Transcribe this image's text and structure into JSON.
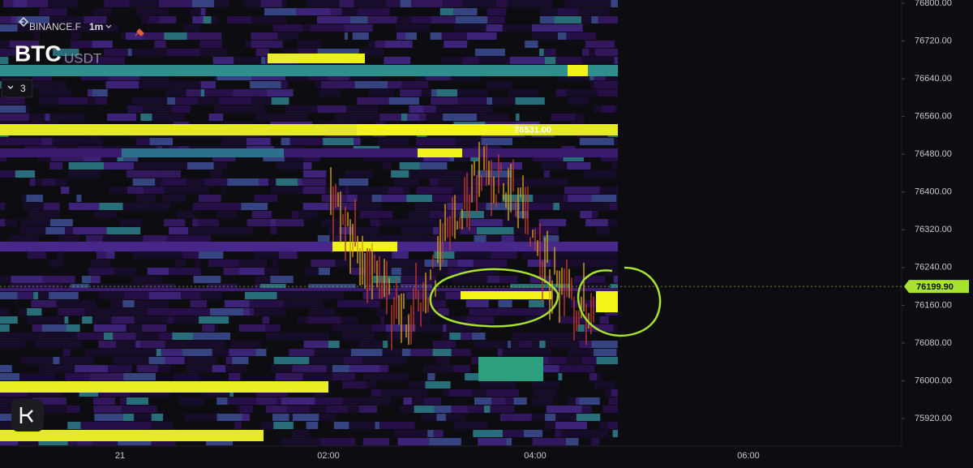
{
  "header": {
    "exchange": "BINANCE.F",
    "interval": "1m",
    "symbol": "BTC",
    "quote": "USDT",
    "indicators": "3"
  },
  "price_axis": {
    "ticks": [
      {
        "value": 76800,
        "label": "76800.00"
      },
      {
        "value": 76720,
        "label": "76720.00"
      },
      {
        "value": 76640,
        "label": "76640.00"
      },
      {
        "value": 76560,
        "label": "76560.00"
      },
      {
        "value": 76480,
        "label": "76480.00"
      },
      {
        "value": 76400,
        "label": "76400.00"
      },
      {
        "value": 76320,
        "label": "76320.00"
      },
      {
        "value": 76240,
        "label": "76240.00"
      },
      {
        "value": 76160,
        "label": "76160.00"
      },
      {
        "value": 76080,
        "label": "76080.00"
      },
      {
        "value": 76000,
        "label": "76000.00"
      },
      {
        "value": 75920,
        "label": "75920.00"
      }
    ]
  },
  "high_label": {
    "value": 76531,
    "label": "76531.00"
  },
  "current_price": {
    "value": 76199.9,
    "label": "76199.90"
  },
  "time_axis": {
    "labels": [
      "21",
      "02:00",
      "04:00",
      "06:00"
    ]
  }
}
